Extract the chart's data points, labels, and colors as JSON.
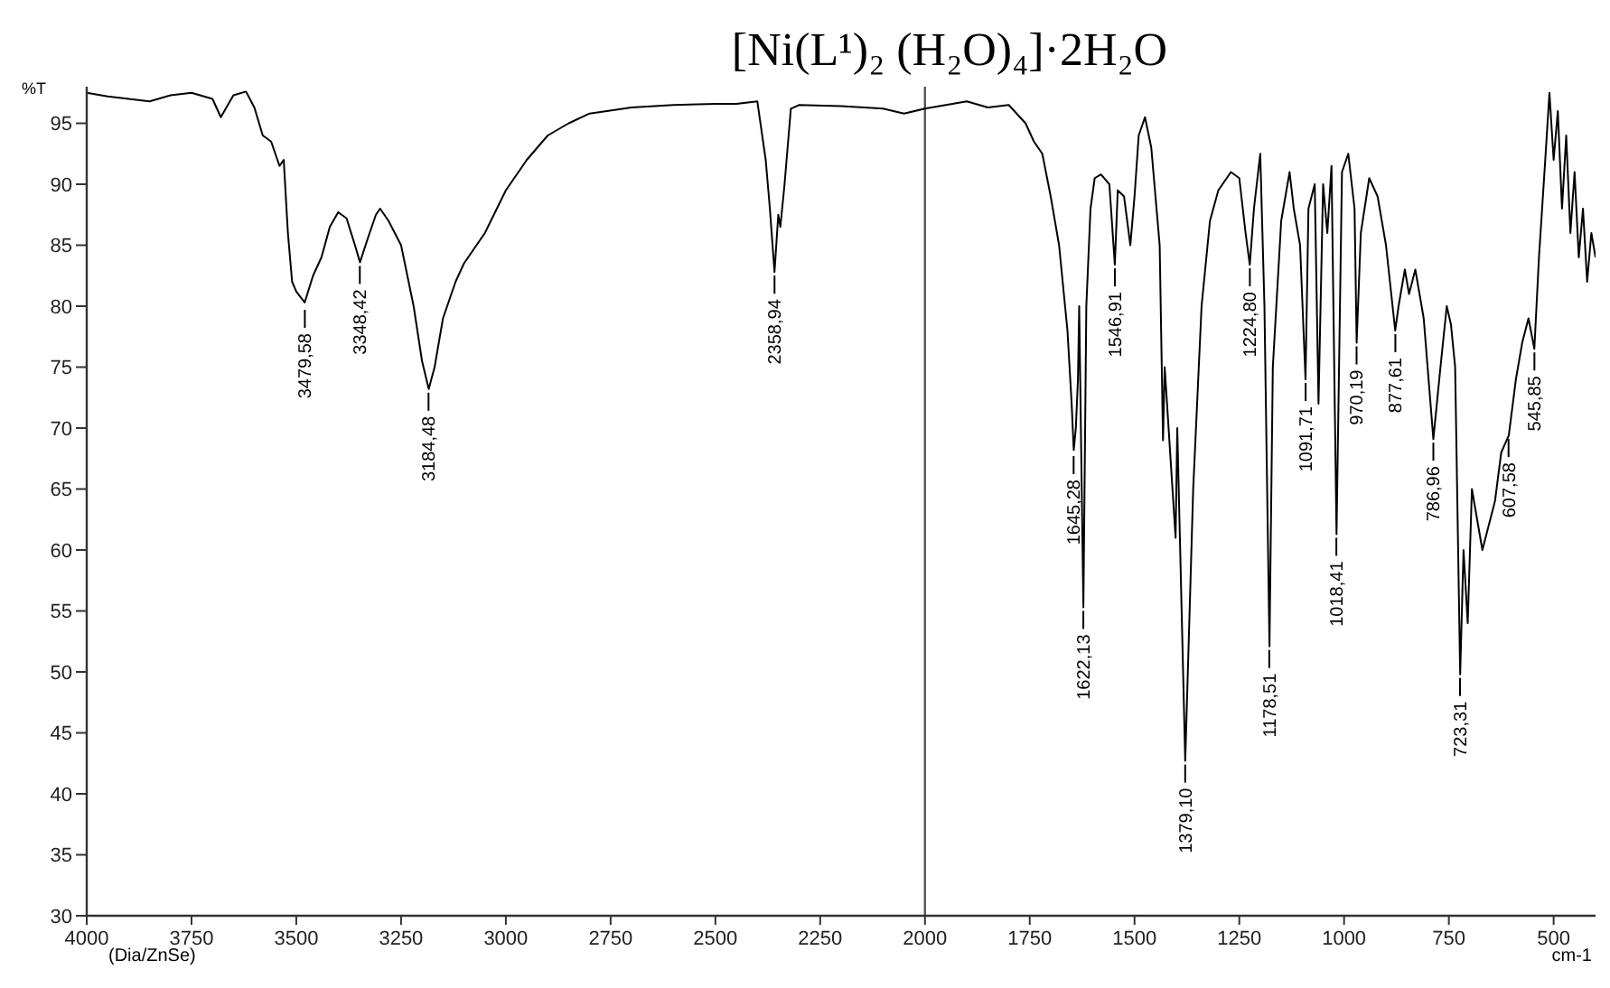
{
  "chart_data": {
    "type": "line",
    "title": "[Ni(L¹)₂ (H₂O)₄]·2H₂O",
    "ylabel": "%T",
    "xlabel": "cm-1",
    "xlim": [
      4000,
      400
    ],
    "xticks": [
      4000,
      3750,
      3500,
      3250,
      3000,
      2750,
      2500,
      2250,
      2000,
      1750,
      1500,
      1250,
      1000,
      750,
      500
    ],
    "ylim": [
      30,
      98
    ],
    "yticks": [
      30,
      35,
      40,
      45,
      50,
      55,
      60,
      65,
      70,
      75,
      80,
      85,
      90,
      95
    ],
    "grid": false,
    "ref_lines": [
      {
        "axis": "x",
        "value": 2000,
        "color": "#555555"
      }
    ],
    "series": [
      {
        "color": "#000000",
        "x": [
          4000,
          3950,
          3900,
          3850,
          3800,
          3750,
          3700,
          3680,
          3650,
          3620,
          3600,
          3580,
          3560,
          3540,
          3530,
          3520,
          3510,
          3500,
          3480,
          3460,
          3440,
          3420,
          3400,
          3380,
          3360,
          3348,
          3330,
          3310,
          3300,
          3280,
          3250,
          3220,
          3200,
          3184,
          3170,
          3150,
          3120,
          3100,
          3050,
          3000,
          2950,
          2900,
          2850,
          2800,
          2700,
          2600,
          2500,
          2450,
          2400,
          2380,
          2370,
          2359,
          2350,
          2345,
          2335,
          2320,
          2300,
          2200,
          2100,
          2050,
          2000,
          1950,
          1900,
          1850,
          1800,
          1760,
          1740,
          1720,
          1700,
          1680,
          1660,
          1650,
          1645,
          1640,
          1635,
          1632,
          1622,
          1615,
          1605,
          1595,
          1580,
          1560,
          1547,
          1540,
          1525,
          1510,
          1500,
          1490,
          1475,
          1460,
          1440,
          1432,
          1428,
          1402,
          1398,
          1379,
          1360,
          1340,
          1320,
          1300,
          1270,
          1250,
          1235,
          1225,
          1215,
          1200,
          1190,
          1178,
          1170,
          1150,
          1130,
          1120,
          1105,
          1092,
          1085,
          1070,
          1061,
          1050,
          1040,
          1030,
          1018,
          1005,
          990,
          975,
          970,
          960,
          940,
          920,
          900,
          878,
          870,
          855,
          845,
          830,
          810,
          787,
          770,
          755,
          745,
          735,
          723,
          715,
          705,
          695,
          680,
          670,
          655,
          640,
          625,
          607,
          590,
          575,
          560,
          546,
          535,
          520,
          510,
          500,
          490,
          480,
          470,
          460,
          450,
          440,
          430,
          420,
          410,
          400
        ],
        "values": [
          97.5,
          97.2,
          97.0,
          96.8,
          97.3,
          97.5,
          97.0,
          95.5,
          97.3,
          97.6,
          96.3,
          94,
          93.5,
          91.5,
          92,
          86,
          82,
          81.2,
          80.3,
          82.5,
          84,
          86.5,
          87.7,
          87.2,
          85,
          83.6,
          85.5,
          87.5,
          88,
          87,
          85,
          80,
          75.5,
          73.2,
          75,
          79,
          82,
          83.5,
          86,
          89.5,
          92,
          94,
          95,
          95.8,
          96.3,
          96.5,
          96.6,
          96.6,
          96.8,
          92,
          88,
          82.8,
          87.5,
          86.5,
          90,
          96.2,
          96.5,
          96.4,
          96.2,
          95.8,
          96.2,
          96.5,
          96.8,
          96.3,
          96.5,
          95,
          93.5,
          92.5,
          89,
          85,
          78,
          72,
          68.2,
          70,
          74,
          80,
          55.3,
          80,
          88,
          90.5,
          90.8,
          90,
          83.4,
          89.5,
          89,
          85,
          89,
          94,
          95.5,
          93,
          85,
          69,
          75,
          61,
          70,
          42.7,
          65,
          80,
          87,
          89.5,
          91,
          90.5,
          86,
          83.4,
          88,
          92.5,
          80,
          52.1,
          75,
          87,
          91,
          88,
          85,
          74,
          88,
          90,
          72,
          90,
          86,
          91.5,
          61.3,
          91,
          92.5,
          88,
          77,
          86,
          90.5,
          89,
          85,
          78,
          80,
          83,
          81,
          83,
          79,
          69.1,
          75,
          80,
          78.5,
          75,
          49.8,
          60,
          54,
          65,
          62,
          60,
          62,
          64,
          68,
          69.4,
          74,
          77,
          79,
          76.5,
          84,
          92,
          97.5,
          92,
          96,
          88,
          94,
          86,
          91,
          84,
          88,
          82,
          86,
          84
        ]
      }
    ],
    "annotations": [
      {
        "text": "3479,58",
        "x": 3479.58,
        "y": 80
      },
      {
        "text": "3348,42",
        "x": 3348.42,
        "y": 83.6
      },
      {
        "text": "3184,48",
        "x": 3184.48,
        "y": 73.2
      },
      {
        "text": "2358,94",
        "x": 2358.94,
        "y": 82.8
      },
      {
        "text": "1645,28",
        "x": 1645.28,
        "y": 68
      },
      {
        "text": "1622,13",
        "x": 1622.13,
        "y": 55.3
      },
      {
        "text": "1546,91",
        "x": 1546.91,
        "y": 83.4
      },
      {
        "text": "1379,10",
        "x": 1379.1,
        "y": 42.7
      },
      {
        "text": "1224,80",
        "x": 1224.8,
        "y": 83.4
      },
      {
        "text": "1178,51",
        "x": 1178.51,
        "y": 52.1
      },
      {
        "text": "1091,71",
        "x": 1091.71,
        "y": 74
      },
      {
        "text": "1018,41",
        "x": 1018.41,
        "y": 61.3
      },
      {
        "text": "970,19",
        "x": 970.19,
        "y": 77
      },
      {
        "text": "877,61",
        "x": 877.61,
        "y": 78
      },
      {
        "text": "786,96",
        "x": 786.96,
        "y": 69.1
      },
      {
        "text": "723,31",
        "x": 723.31,
        "y": 49.8
      },
      {
        "text": "607,58",
        "x": 607.58,
        "y": 69.4
      },
      {
        "text": "545,85",
        "x": 545.85,
        "y": 76.5
      },
      "(Dia/ZnSe)"
    ]
  }
}
